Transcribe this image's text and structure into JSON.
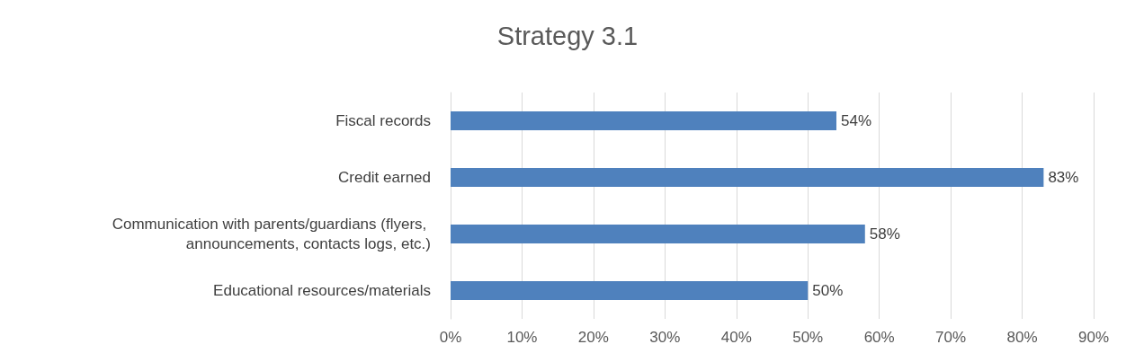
{
  "chart_data": {
    "type": "bar",
    "orientation": "horizontal",
    "title": "Strategy 3.1",
    "categories": [
      "Fiscal records",
      "Credit earned",
      "Communication with parents/guardians (flyers, announcements, contacts logs, etc.)",
      "Educational resources/materials"
    ],
    "values": [
      54,
      83,
      58,
      50
    ],
    "color": "#4f81bd",
    "value_labels": [
      "54%",
      "83%",
      "58%",
      "50%"
    ],
    "xlim": [
      0,
      90
    ],
    "xticks": [
      {
        "value": 0,
        "label": "0%"
      },
      {
        "value": 10,
        "label": "10%"
      },
      {
        "value": 20,
        "label": "20%"
      },
      {
        "value": 30,
        "label": "30%"
      },
      {
        "value": 40,
        "label": "40%"
      },
      {
        "value": 50,
        "label": "50%"
      },
      {
        "value": 60,
        "label": "60%"
      },
      {
        "value": 70,
        "label": "70%"
      },
      {
        "value": 80,
        "label": "80%"
      },
      {
        "value": 90,
        "label": "90%"
      }
    ],
    "grid": "x"
  }
}
